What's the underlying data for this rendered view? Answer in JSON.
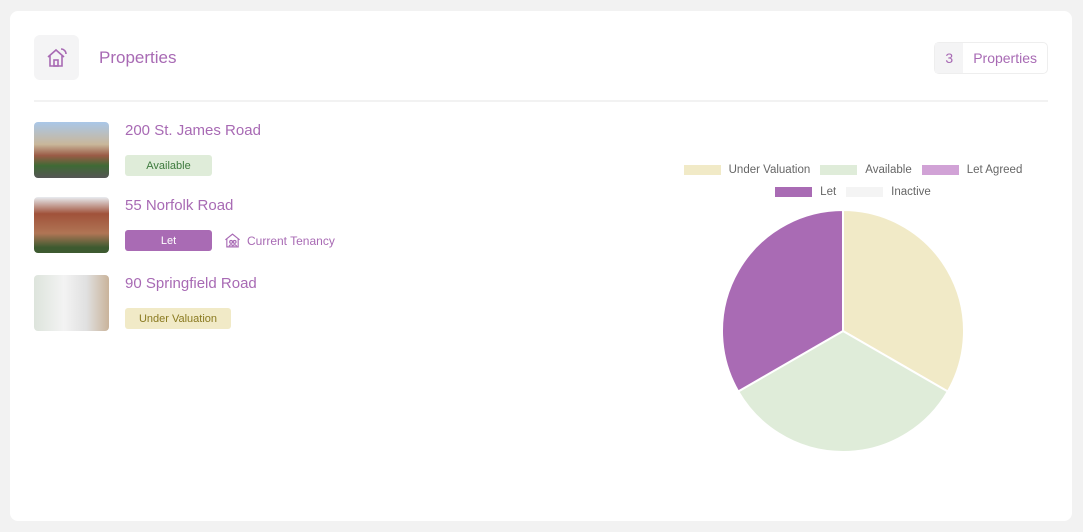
{
  "header": {
    "title": "Properties",
    "count": "3",
    "count_label": "Properties"
  },
  "properties": [
    {
      "name": "200 St. James Road",
      "status": "Available",
      "status_bg": "#dfecd9",
      "status_fg": "#3d7a3d",
      "thumb": "linear-gradient(#a9c7e8 0%,#c9b79a 40%,#9a5a45 60%,#3f6a35 78%,#555 100%)"
    },
    {
      "name": "55 Norfolk Road",
      "status": "Let",
      "status_bg": "#a96bb4",
      "status_fg": "#ffffff",
      "thumb": "linear-gradient(#e8ecf0 0%,#a0523a 30%,#b07555 65%,#3d5a30 90%)",
      "link": "Current Tenancy"
    },
    {
      "name": "90 Springfield Road",
      "status": "Under Valuation",
      "status_bg": "#f1eac7",
      "status_fg": "#8a7a20",
      "thumb": "linear-gradient(90deg,#dde4dc 0%,#f3f3f3 40%,#e0e0e0 70%,#c9b39a 100%)"
    }
  ],
  "chart_data": {
    "type": "pie",
    "categories": [
      "Under Valuation",
      "Available",
      "Let Agreed",
      "Let",
      "Inactive"
    ],
    "values": [
      1,
      1,
      0,
      1,
      0
    ],
    "colors": [
      "#f1eac7",
      "#dfecd9",
      "#d1a2d6",
      "#a96bb4",
      "#f4f4f4"
    ],
    "legend": "top"
  }
}
